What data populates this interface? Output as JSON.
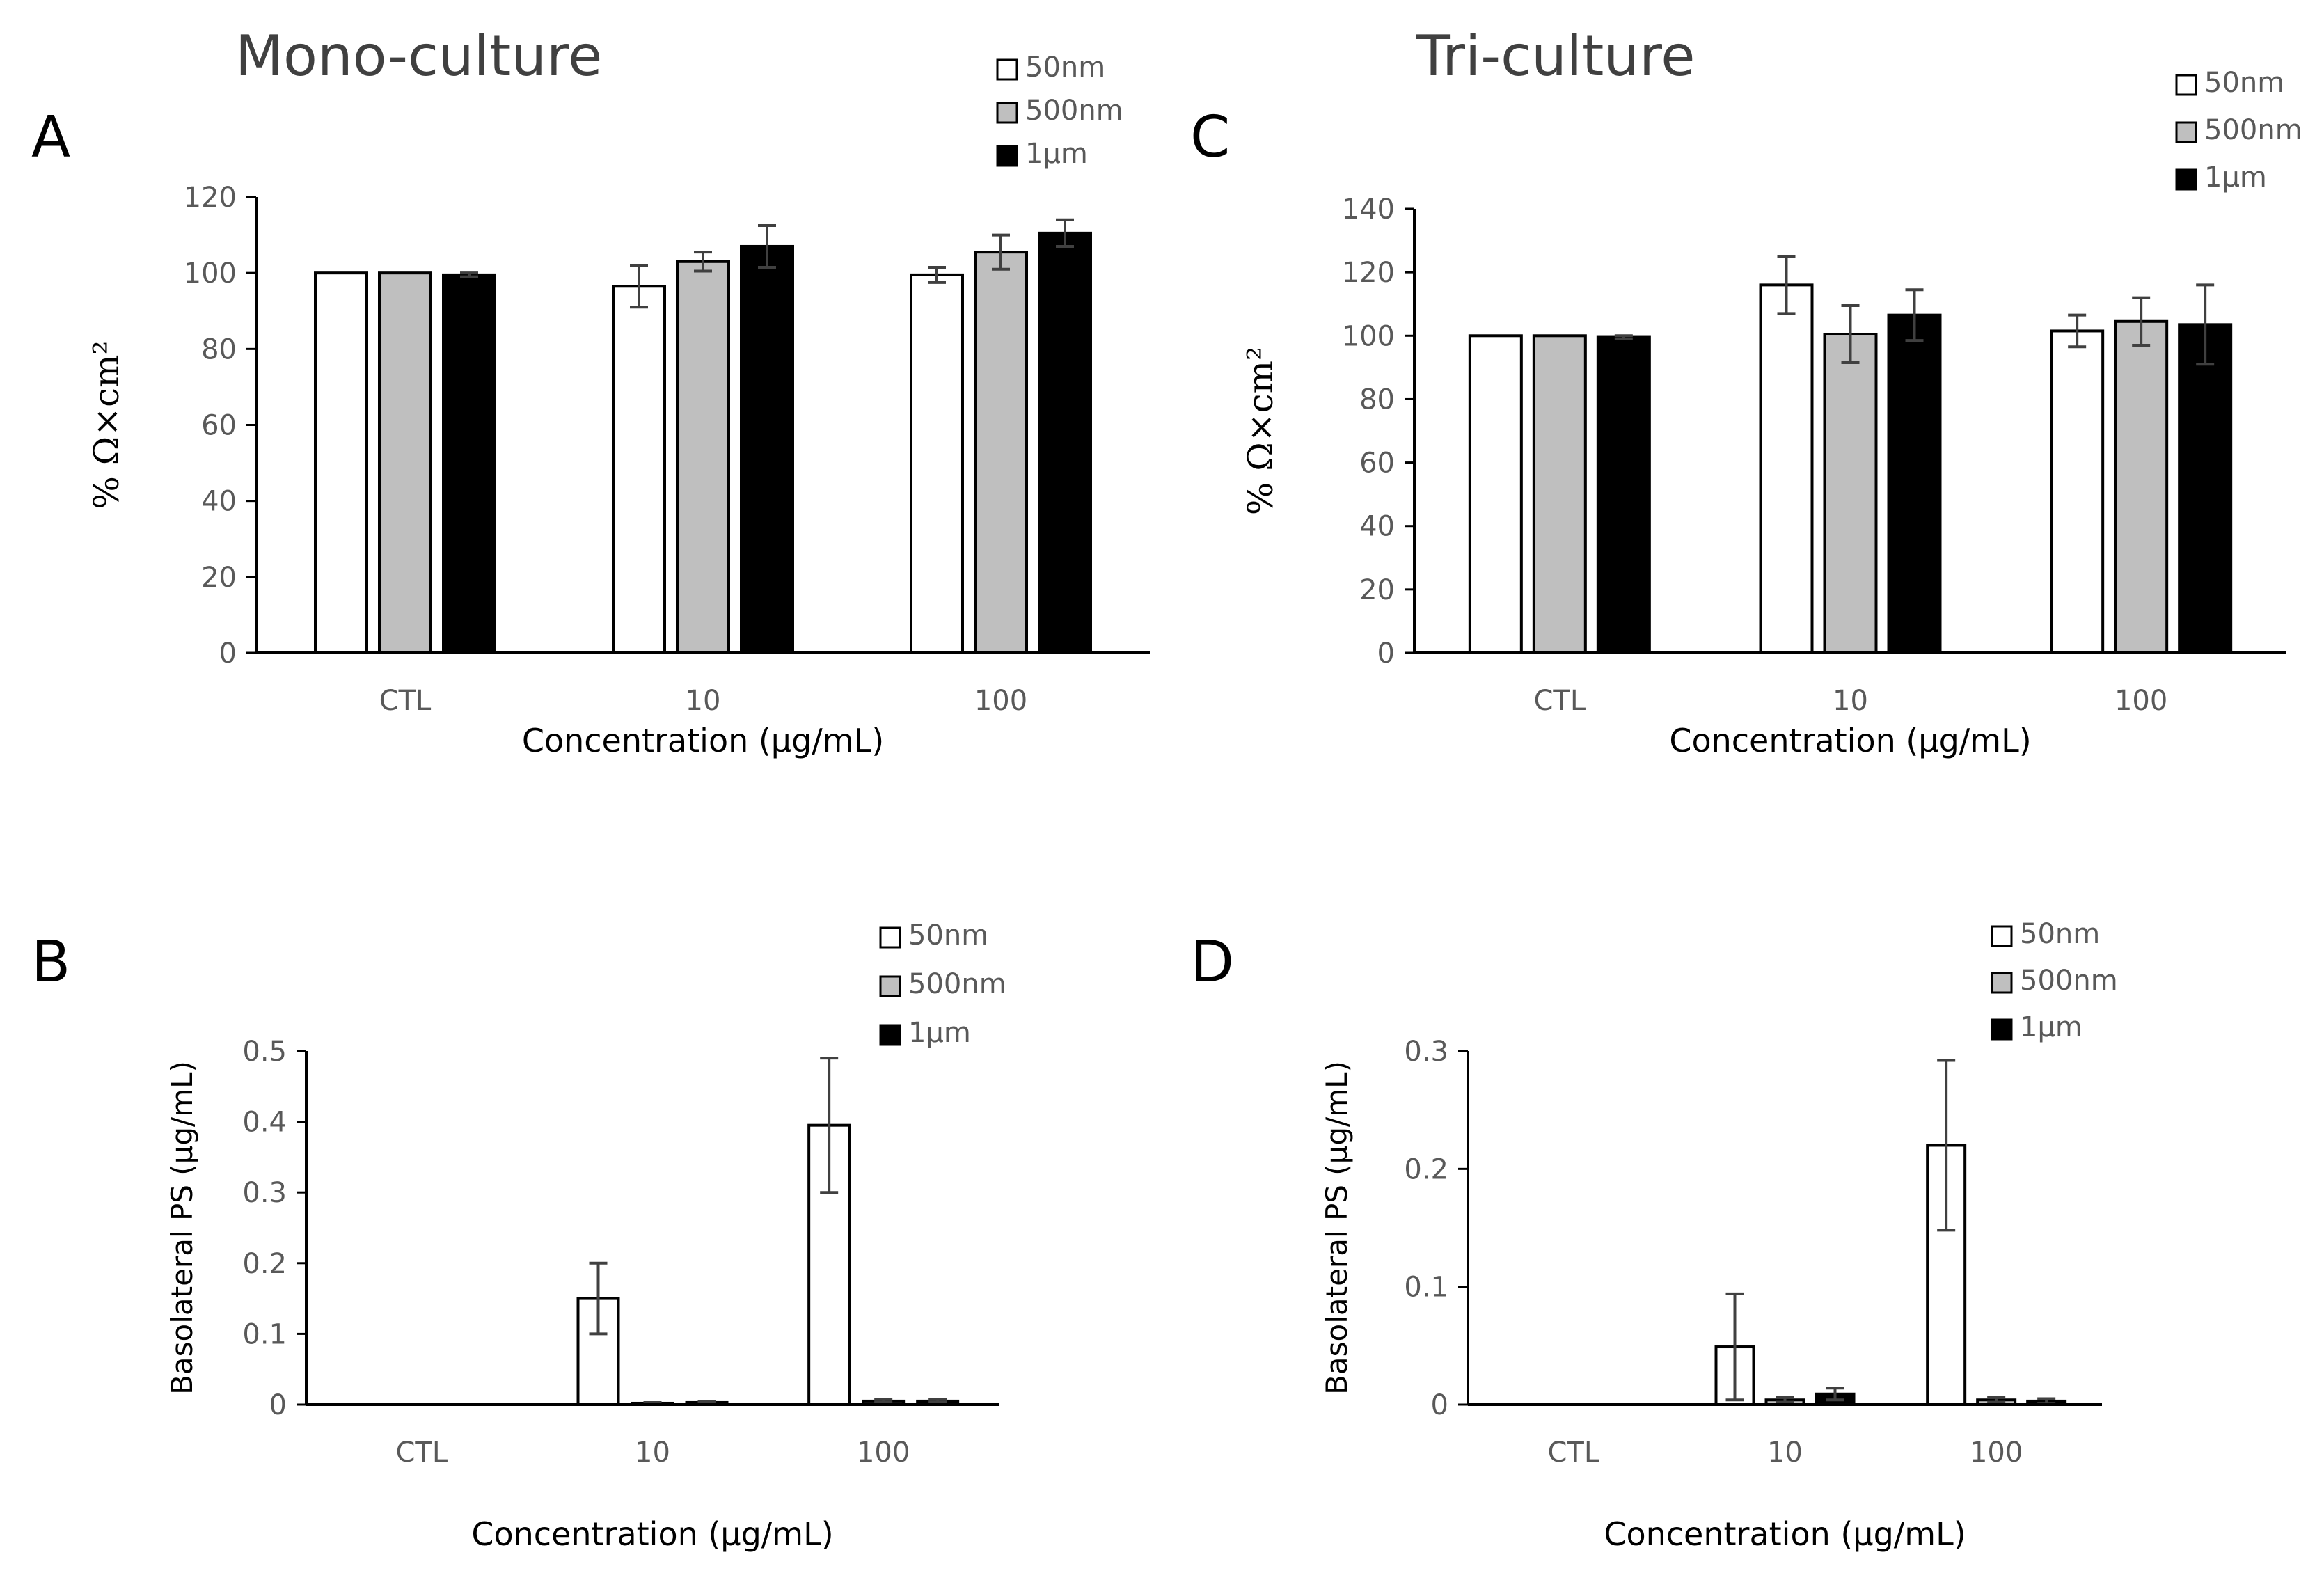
{
  "figure": {
    "headings": {
      "mono": "Mono-culture",
      "tri": "Tri-culture"
    }
  },
  "colors": {
    "bar_50nm": "#ffffff",
    "bar_500nm": "#bfbfbf",
    "bar_1um": "#000000",
    "axis": "#000000",
    "text": "#595959",
    "error": "#404040"
  },
  "chart_data": [
    {
      "id": "A",
      "panel_label": "A",
      "type": "bar",
      "title": "",
      "categories": [
        "CTL",
        "10",
        "100"
      ],
      "series": [
        {
          "name": "50nm",
          "values": [
            100,
            96.5,
            99.5
          ],
          "errors": [
            0,
            5.5,
            2
          ]
        },
        {
          "name": "500nm",
          "values": [
            100,
            103,
            105.5
          ],
          "errors": [
            0,
            2.5,
            4.5
          ]
        },
        {
          "name": "1µm",
          "values": [
            99.5,
            107,
            110.5
          ],
          "errors": [
            0.5,
            5.5,
            3.5
          ]
        }
      ],
      "ylim": [
        0,
        120
      ],
      "yticks": [
        "0",
        "20",
        "40",
        "60",
        "80",
        "100",
        "120"
      ],
      "ylabel": "% Ω×cm²",
      "xlabel": "Concentration (μg/mL)",
      "legend_position": "top-right"
    },
    {
      "id": "B",
      "panel_label": "B",
      "type": "bar",
      "title": "",
      "categories": [
        "CTL",
        "10",
        "100"
      ],
      "series": [
        {
          "name": "50nm",
          "values": [
            0,
            0.15,
            0.395
          ],
          "errors": [
            0,
            0.05,
            0.095
          ]
        },
        {
          "name": "500nm",
          "values": [
            0,
            0.002,
            0.005
          ],
          "errors": [
            0,
            0.001,
            0.002
          ]
        },
        {
          "name": "1µm",
          "values": [
            0,
            0.003,
            0.005
          ],
          "errors": [
            0,
            0.001,
            0.002
          ]
        }
      ],
      "ylim": [
        0,
        0.5
      ],
      "yticks": [
        "0",
        "0.1",
        "0.2",
        "0.3",
        "0.4",
        "0.5"
      ],
      "ylabel": "Basolateral PS (μg/mL)",
      "xlabel": "Concentration (μg/mL)",
      "legend_position": "top-right"
    },
    {
      "id": "C",
      "panel_label": "C",
      "type": "bar",
      "title": "",
      "categories": [
        "CTL",
        "10",
        "100"
      ],
      "series": [
        {
          "name": "50nm",
          "values": [
            100,
            116,
            101.5
          ],
          "errors": [
            0,
            9,
            5
          ]
        },
        {
          "name": "500nm",
          "values": [
            100,
            100.5,
            104.5
          ],
          "errors": [
            0,
            9,
            7.5
          ]
        },
        {
          "name": "1µm",
          "values": [
            99.5,
            106.5,
            103.5
          ],
          "errors": [
            0.5,
            8,
            12.5
          ]
        }
      ],
      "ylim": [
        0,
        140
      ],
      "yticks": [
        "0",
        "20",
        "40",
        "60",
        "80",
        "100",
        "120",
        "140"
      ],
      "ylabel": "% Ω×cm²",
      "xlabel": "Concentration (μg/mL)",
      "legend_position": "top-right"
    },
    {
      "id": "D",
      "panel_label": "D",
      "type": "bar",
      "title": "",
      "categories": [
        "CTL",
        "10",
        "100"
      ],
      "series": [
        {
          "name": "50nm",
          "values": [
            0,
            0.049,
            0.22
          ],
          "errors": [
            0,
            0.045,
            0.072
          ]
        },
        {
          "name": "500nm",
          "values": [
            0,
            0.004,
            0.004
          ],
          "errors": [
            0,
            0.002,
            0.002
          ]
        },
        {
          "name": "1µm",
          "values": [
            0,
            0.009,
            0.003
          ],
          "errors": [
            0,
            0.005,
            0.002
          ]
        }
      ],
      "ylim": [
        0,
        0.3
      ],
      "yticks": [
        "0",
        "0.1",
        "0.2",
        "0.3"
      ],
      "ylabel": "Basolateral PS (μg/mL)",
      "xlabel": "Concentration (μg/mL)",
      "legend_position": "top-right"
    }
  ]
}
